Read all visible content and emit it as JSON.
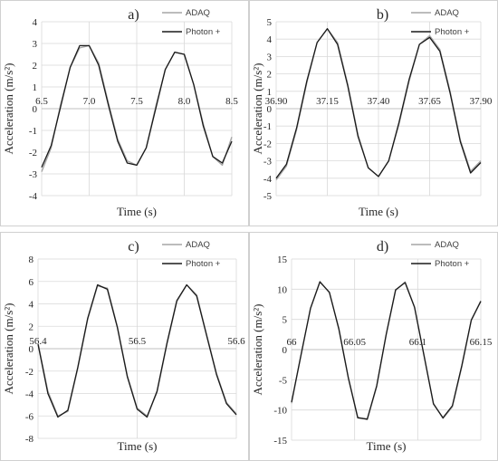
{
  "colors": {
    "adaq": "#a6a6a6",
    "photon": "#1a1a1a",
    "grid": "#d9d9d9",
    "axis": "#bfbfbf"
  },
  "chart_data": [
    {
      "type": "line",
      "panel_label": "a)",
      "xlabel": "Time (s)",
      "ylabel": "Acceleration (m/s²)",
      "xlim": [
        6.5,
        8.5
      ],
      "ylim": [
        -4,
        4
      ],
      "xticks": [
        "6.5",
        "7.0",
        "7.5",
        "8.0",
        "8.5"
      ],
      "yticks": [
        "-4",
        "-3",
        "-2",
        "-1",
        "0",
        "1",
        "2",
        "3",
        "4"
      ],
      "legend_placement": "top-right",
      "series": [
        {
          "name": "ADAQ",
          "x": [
            6.5,
            6.6,
            6.7,
            6.8,
            6.9,
            7.0,
            7.1,
            7.2,
            7.3,
            7.4,
            7.5,
            7.6,
            7.7,
            7.8,
            7.9,
            8.0,
            8.1,
            8.2,
            8.3,
            8.4,
            8.5
          ],
          "y": [
            -2.9,
            -1.8,
            0.2,
            1.9,
            2.8,
            2.9,
            2.1,
            0.3,
            -1.4,
            -2.4,
            -2.6,
            -1.8,
            0.1,
            1.8,
            2.6,
            2.5,
            1.1,
            -0.7,
            -2.2,
            -2.6,
            -1.3
          ]
        },
        {
          "name": "Photon +",
          "x": [
            6.5,
            6.6,
            6.7,
            6.8,
            6.9,
            7.0,
            7.1,
            7.2,
            7.3,
            7.4,
            7.5,
            7.6,
            7.7,
            7.8,
            7.9,
            8.0,
            8.1,
            8.2,
            8.3,
            8.4,
            8.5
          ],
          "y": [
            -2.7,
            -1.7,
            0.1,
            1.9,
            2.9,
            2.9,
            2.0,
            0.2,
            -1.5,
            -2.5,
            -2.6,
            -1.8,
            0.0,
            1.8,
            2.6,
            2.5,
            1.1,
            -0.8,
            -2.2,
            -2.5,
            -1.5
          ]
        }
      ]
    },
    {
      "type": "line",
      "panel_label": "b)",
      "xlabel": "Time (s)",
      "ylabel": "Acceleration (m/s²)",
      "xlim": [
        36.9,
        37.9
      ],
      "ylim": [
        -5,
        5
      ],
      "xticks": [
        "36.90",
        "37.15",
        "37.40",
        "37.65",
        "37.90"
      ],
      "yticks": [
        "-5",
        "-4",
        "-3",
        "-2",
        "-1",
        "0",
        "1",
        "2",
        "3",
        "4",
        "5"
      ],
      "legend_placement": "top-right",
      "series": [
        {
          "name": "ADAQ",
          "x": [
            36.9,
            36.95,
            37.0,
            37.05,
            37.1,
            37.15,
            37.2,
            37.25,
            37.3,
            37.35,
            37.4,
            37.45,
            37.5,
            37.55,
            37.6,
            37.65,
            37.7,
            37.75,
            37.8,
            37.85,
            37.9
          ],
          "y": [
            -4.1,
            -3.3,
            -1.2,
            1.5,
            3.8,
            4.6,
            3.8,
            1.4,
            -1.5,
            -3.4,
            -3.9,
            -3.0,
            -0.9,
            1.6,
            3.7,
            4.2,
            3.4,
            1.0,
            -1.8,
            -3.6,
            -3.0
          ]
        },
        {
          "name": "Photon +",
          "x": [
            36.9,
            36.95,
            37.0,
            37.05,
            37.1,
            37.15,
            37.2,
            37.25,
            37.3,
            37.35,
            37.4,
            37.45,
            37.5,
            37.55,
            37.6,
            37.65,
            37.7,
            37.75,
            37.8,
            37.85,
            37.9
          ],
          "y": [
            -4.0,
            -3.2,
            -1.1,
            1.6,
            3.8,
            4.6,
            3.7,
            1.3,
            -1.6,
            -3.4,
            -3.9,
            -3.0,
            -0.8,
            1.7,
            3.7,
            4.1,
            3.3,
            0.9,
            -1.9,
            -3.7,
            -3.1
          ]
        }
      ]
    },
    {
      "type": "line",
      "panel_label": "c)",
      "xlabel": "Time (s)",
      "ylabel": "Acceleration (m/s²)",
      "xlim": [
        56.4,
        56.6
      ],
      "ylim": [
        -8,
        8
      ],
      "xticks": [
        "56.4",
        "56.5",
        "56.6"
      ],
      "yticks": [
        "-8",
        "-6",
        "-4",
        "-2",
        "0",
        "2",
        "4",
        "6",
        "8"
      ],
      "legend_placement": "top-right",
      "series": [
        {
          "name": "ADAQ",
          "x": [
            56.4,
            56.41,
            56.42,
            56.43,
            56.44,
            56.45,
            56.46,
            56.47,
            56.48,
            56.49,
            56.5,
            56.51,
            56.52,
            56.53,
            56.54,
            56.55,
            56.56,
            56.57,
            56.58,
            56.59,
            56.6
          ],
          "y": [
            0.5,
            -3.8,
            -6.0,
            -5.6,
            -1.8,
            2.6,
            5.6,
            5.4,
            2.0,
            -2.4,
            -5.3,
            -6.0,
            -3.9,
            0.4,
            4.2,
            5.7,
            4.8,
            1.3,
            -2.2,
            -4.8,
            -5.8
          ]
        },
        {
          "name": "Photon +",
          "x": [
            56.4,
            56.41,
            56.42,
            56.43,
            56.44,
            56.45,
            56.46,
            56.47,
            56.48,
            56.49,
            56.5,
            56.51,
            56.52,
            56.53,
            56.54,
            56.55,
            56.56,
            56.57,
            56.58,
            56.59,
            56.6
          ],
          "y": [
            0.4,
            -4.0,
            -6.1,
            -5.5,
            -1.7,
            2.7,
            5.7,
            5.3,
            1.9,
            -2.5,
            -5.4,
            -6.1,
            -3.8,
            0.5,
            4.3,
            5.7,
            4.7,
            1.2,
            -2.3,
            -4.9,
            -5.9
          ]
        }
      ]
    },
    {
      "type": "line",
      "panel_label": "d)",
      "xlabel": "Time (s)",
      "ylabel": "Acceleration (m/s²)",
      "xlim": [
        66.0,
        66.15
      ],
      "ylim": [
        -15,
        15
      ],
      "xticks": [
        "66",
        "66.05",
        "66.1",
        "66.15"
      ],
      "yticks": [
        "-15",
        "-10",
        "-5",
        "0",
        "5",
        "10",
        "15"
      ],
      "legend_placement": "top-right",
      "series": [
        {
          "name": "ADAQ",
          "x": [
            66.0,
            66.0075,
            66.015,
            66.0225,
            66.03,
            66.0375,
            66.045,
            66.0525,
            66.06,
            66.0675,
            66.075,
            66.0825,
            66.09,
            66.0975,
            66.105,
            66.1125,
            66.12,
            66.1275,
            66.135,
            66.1425,
            66.15
          ],
          "y": [
            -8.9,
            -1.0,
            6.9,
            11.3,
            9.4,
            3.6,
            -4.6,
            -11.2,
            -11.6,
            -6.2,
            2.4,
            9.8,
            11.2,
            7.1,
            -0.9,
            -8.9,
            -11.4,
            -9.5,
            -2.8,
            4.8,
            8.1
          ]
        },
        {
          "name": "Photon +",
          "x": [
            66.0,
            66.0075,
            66.015,
            66.0225,
            66.03,
            66.0375,
            66.045,
            66.0525,
            66.06,
            66.0675,
            66.075,
            66.0825,
            66.09,
            66.0975,
            66.105,
            66.1125,
            66.12,
            66.1275,
            66.135,
            66.1425,
            66.15
          ],
          "y": [
            -8.7,
            -0.9,
            6.8,
            11.2,
            9.5,
            3.4,
            -4.7,
            -11.3,
            -11.5,
            -6.0,
            2.5,
            9.9,
            11.1,
            7.0,
            -1.0,
            -9.0,
            -11.3,
            -9.3,
            -2.6,
            4.9,
            8.0
          ]
        }
      ]
    }
  ]
}
